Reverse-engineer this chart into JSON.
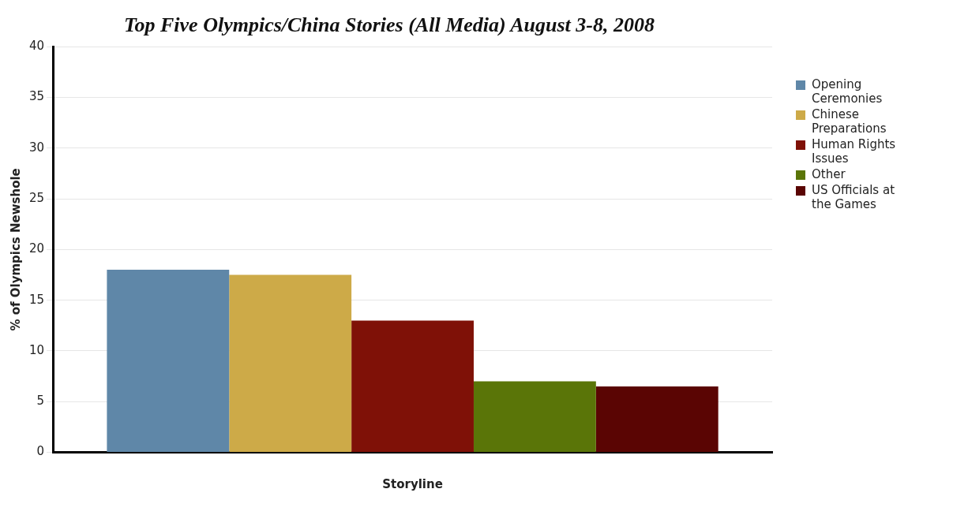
{
  "chart_data": {
    "type": "bar",
    "title": "Top Five Olympics/China Stories (All Media) August 3-8, 2008",
    "xlabel": "Storyline",
    "ylabel": "% of Olympics Newshole",
    "categories": [
      null
    ],
    "series": [
      {
        "name": "Opening Ceremonies",
        "color": "#5f87a8",
        "values": [
          18
        ]
      },
      {
        "name": "Chinese Preparations",
        "color": "#cdaa48",
        "values": [
          17.5
        ]
      },
      {
        "name": "Human Rights Issues",
        "color": "#7f1107",
        "values": [
          13
        ]
      },
      {
        "name": "Other",
        "color": "#5a7508",
        "values": [
          7
        ]
      },
      {
        "name": "US Officials at the Games",
        "color": "#5a0503",
        "values": [
          6.5
        ]
      }
    ],
    "ylim": [
      0,
      40
    ],
    "yticks": [
      0,
      5,
      10,
      15,
      20,
      25,
      30,
      35,
      40
    ],
    "grid": "y",
    "legend": "right"
  }
}
